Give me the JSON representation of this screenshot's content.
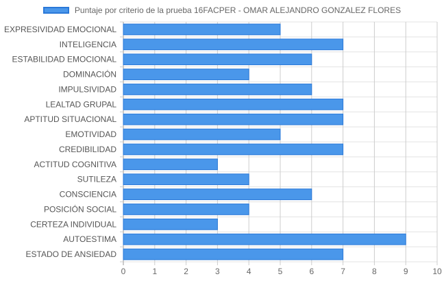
{
  "chart_data": {
    "type": "bar",
    "orientation": "horizontal",
    "series": [
      {
        "name": "Puntaje por criterio de la prueba 16FACPER - OMAR ALEJANDRO GONZALEZ FLORES",
        "values": [
          5,
          7,
          6,
          4,
          6,
          7,
          7,
          5,
          7,
          3,
          4,
          6,
          4,
          3,
          9,
          7
        ]
      }
    ],
    "categories": [
      "EXPRESIVIDAD EMOCIONAL",
      "INTELIGENCIA",
      "ESTABILIDAD EMOCIONAL",
      "DOMINACIÓN",
      "IMPULSIVIDAD",
      "LEALTAD GRUPAL",
      "APTITUD SITUACIONAL",
      "EMOTIVIDAD",
      "CREDIBILIDAD",
      "ACTITUD COGNITIVA",
      "SUTILEZA",
      "CONSCIENCIA",
      "POSICIÓN SOCIAL",
      "CERTEZA INDIVIDUAL",
      "AUTOESTIMA",
      "ESTADO DE ANSIEDAD"
    ],
    "xlim": [
      0,
      10
    ],
    "xticks": [
      "0",
      "1",
      "2",
      "3",
      "4",
      "5",
      "6",
      "7",
      "8",
      "9",
      "10"
    ],
    "grid": true,
    "legend_position": "top",
    "colors": {
      "bar_fill": "#4a97ea",
      "bar_border": "#2a78d8",
      "grid": "#e3e3e3"
    }
  }
}
